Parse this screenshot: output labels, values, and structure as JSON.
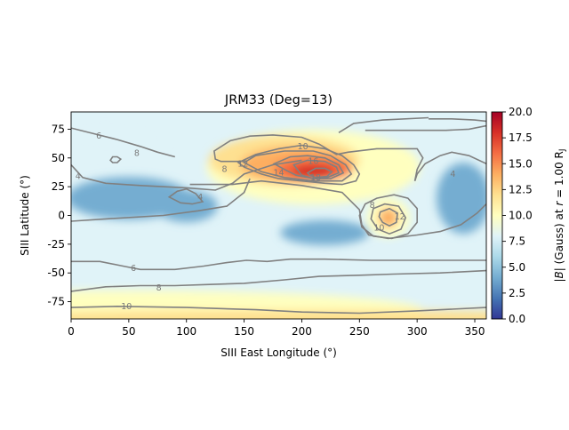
{
  "chart_data": {
    "type": "heatmap",
    "title": "JRM33 (Deg=13)",
    "xlabel": "SIII East Longitude (°)",
    "ylabel": "SIII Latitude (°)",
    "xlim": [
      0,
      360
    ],
    "ylim": [
      -90,
      90
    ],
    "xticks": [
      0,
      50,
      100,
      150,
      200,
      250,
      300,
      350
    ],
    "yticks": [
      75,
      50,
      25,
      0,
      -25,
      -50,
      -75
    ],
    "colorbar": {
      "label": "|B| (Gauss) at r = 1.00 RJ",
      "label_parts": [
        "|",
        "B",
        "| (Gauss) at ",
        "r",
        " = 1.00 R",
        "J"
      ],
      "range": [
        0,
        20
      ],
      "ticks": [
        "0.0",
        "2.5",
        "5.0",
        "7.5",
        "10.0",
        "12.5",
        "15.0",
        "17.5",
        "20.0"
      ],
      "colormap": [
        "#313695",
        "#4575b4",
        "#74add1",
        "#abd9e9",
        "#e0f3f8",
        "#ffffbf",
        "#fee090",
        "#fdae61",
        "#f46d43",
        "#d73027",
        "#a50026"
      ]
    },
    "contour_levels": [
      4,
      6,
      8,
      10,
      12,
      14,
      16,
      18
    ],
    "contour_labels": [
      {
        "text": "6",
        "lon": 24,
        "lat": 69
      },
      {
        "text": "8",
        "lon": 57,
        "lat": 54
      },
      {
        "text": "4",
        "lon": 6,
        "lat": 34
      },
      {
        "text": "8",
        "lon": 133,
        "lat": 40
      },
      {
        "text": "4",
        "lon": 112,
        "lat": 16
      },
      {
        "text": "10",
        "lon": 201,
        "lat": 60
      },
      {
        "text": "12",
        "lon": 149,
        "lat": 45
      },
      {
        "text": "14",
        "lon": 180,
        "lat": 37
      },
      {
        "text": "16",
        "lon": 210,
        "lat": 47
      },
      {
        "text": "18",
        "lon": 212,
        "lat": 33
      },
      {
        "text": "8",
        "lon": 261,
        "lat": 9
      },
      {
        "text": "10",
        "lon": 267,
        "lat": -11
      },
      {
        "text": "12",
        "lon": 285,
        "lat": -1
      },
      {
        "text": "4",
        "lon": 331,
        "lat": 36
      },
      {
        "text": "6",
        "lon": 54,
        "lat": -46
      },
      {
        "text": "8",
        "lon": 76,
        "lat": -63
      },
      {
        "text": "10",
        "lon": 48,
        "lat": -79
      }
    ]
  }
}
